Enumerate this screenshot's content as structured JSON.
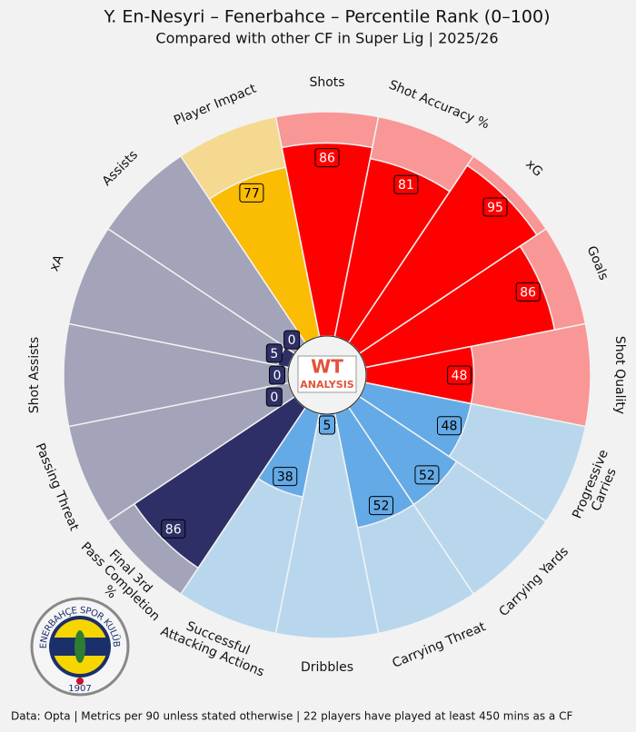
{
  "chart_data": {
    "type": "pizza",
    "title": "Y. En-Nesyri – Fenerbahce – Percentile Rank (0–100)",
    "subtitle": "Compared with other CF in Super Lig | 2025/26",
    "categories": [
      "Shots",
      "Shot Accuracy %",
      "xG",
      "Goals",
      "Shot Quality",
      "Progressive\nCarries",
      "Carrying Yards",
      "Carrying Threat",
      "Dribbles",
      "Successful\nAttacking Actions",
      "Final 3rd\nPass Completion\n%",
      "Passing Threat",
      "Shot Assists",
      "xA",
      "Assists",
      "Player Impact"
    ],
    "values": [
      86,
      81,
      95,
      86,
      48,
      48,
      52,
      52,
      5,
      38,
      86,
      0,
      0,
      5,
      0,
      77
    ],
    "colors": [
      "#ff0000",
      "#ff0000",
      "#ff0000",
      "#ff0000",
      "#ff0000",
      "#64aae6",
      "#64aae6",
      "#64aae6",
      "#64aae6",
      "#64aae6",
      "#2e2f66",
      "#2e2f66",
      "#2e2f66",
      "#2e2f66",
      "#2e2f66",
      "#fbbc04"
    ],
    "background_colors": [
      "#f99696",
      "#f99696",
      "#f99696",
      "#f99696",
      "#f99696",
      "#b8d7ed",
      "#b8d7ed",
      "#b8d7ed",
      "#b8d7ed",
      "#b8d7ed",
      "#a3a3ba",
      "#a3a3ba",
      "#a3a3ba",
      "#a3a3ba",
      "#a3a3ba",
      "#f5d991"
    ],
    "ylim": [
      0,
      100
    ],
    "center_logo": [
      "WT",
      "ANALYSIS"
    ],
    "club_logo": {
      "name": "FENERBAHÇE SPOR KULÜBÜ",
      "year": "1907"
    },
    "footer": "Data: Opta | Metrics per 90 unless stated otherwise | 22 players have played at least 450 mins as a CF"
  }
}
